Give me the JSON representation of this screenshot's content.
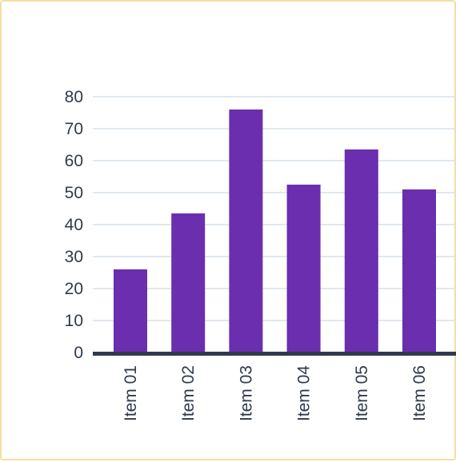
{
  "chart_data": {
    "type": "bar",
    "title": "",
    "xlabel": "",
    "ylabel": "",
    "categories": [
      "Item 01",
      "Item 02",
      "Item 03",
      "Item 04",
      "Item 05",
      "Item 06"
    ],
    "values": [
      26,
      43.5,
      76,
      52.5,
      63.5,
      51
    ],
    "ylim": [
      0,
      80
    ],
    "yticks": [
      "0",
      "10",
      "20",
      "30",
      "40",
      "50",
      "60",
      "70",
      "80"
    ],
    "grid": true,
    "legend": "none",
    "colors": {
      "bar": "#6a2eaf",
      "grid": "#d6e0ea",
      "baseline": "#2f3a4c",
      "text": "#2f3a4c",
      "frame_border": "#f3dfa0"
    }
  }
}
